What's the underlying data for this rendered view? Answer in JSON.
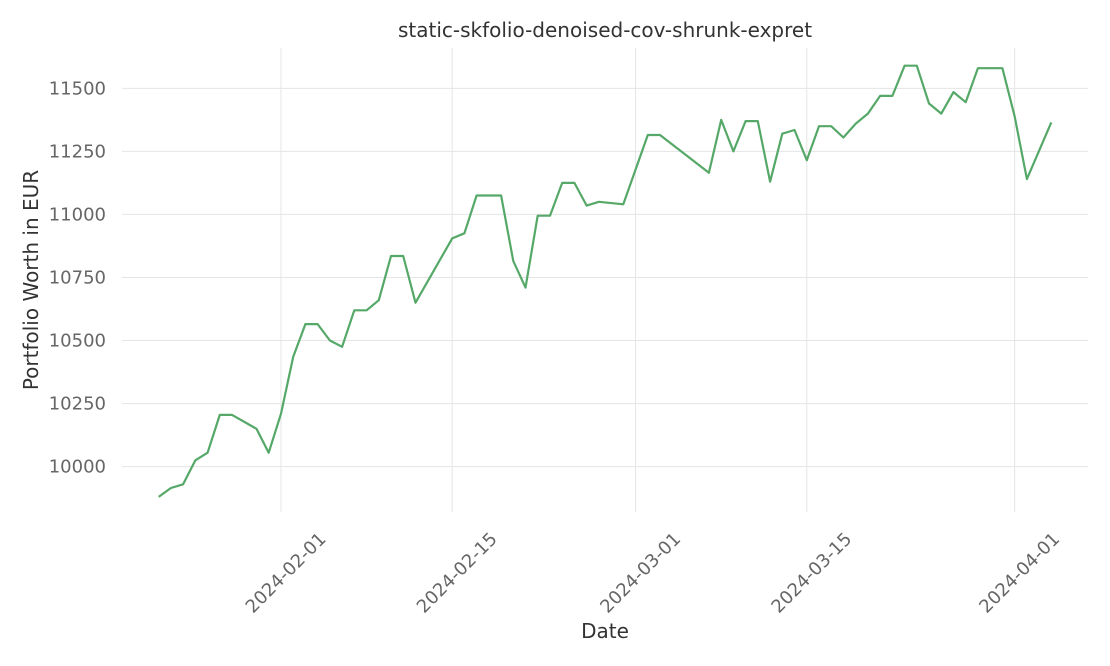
{
  "chart_data": {
    "type": "line",
    "title": "static-skfolio-denoised-cov-shrunk-expret",
    "xlabel": "Date",
    "ylabel": "Portfolio Worth in EUR",
    "xlim": [
      "2024-01-19",
      "2024-04-07"
    ],
    "ylim": [
      9820,
      11660
    ],
    "x_ticks": [
      "2024-02-01",
      "2024-02-15",
      "2024-03-01",
      "2024-03-15",
      "2024-04-01"
    ],
    "y_ticks": [
      10000,
      10250,
      10500,
      10750,
      11000,
      11250,
      11500
    ],
    "grid": true,
    "series": [
      {
        "color": "#55a868",
        "x": [
          "2024-01-22",
          "2024-01-23",
          "2024-01-24",
          "2024-01-25",
          "2024-01-26",
          "2024-01-27",
          "2024-01-28",
          "2024-01-30",
          "2024-01-31",
          "2024-02-01",
          "2024-02-02",
          "2024-02-03",
          "2024-02-04",
          "2024-02-05",
          "2024-02-06",
          "2024-02-07",
          "2024-02-08",
          "2024-02-09",
          "2024-02-10",
          "2024-02-11",
          "2024-02-12",
          "2024-02-15",
          "2024-02-16",
          "2024-02-17",
          "2024-02-18",
          "2024-02-19",
          "2024-02-20",
          "2024-02-21",
          "2024-02-22",
          "2024-02-23",
          "2024-02-24",
          "2024-02-25",
          "2024-02-26",
          "2024-02-27",
          "2024-02-29",
          "2024-03-02",
          "2024-03-03",
          "2024-03-07",
          "2024-03-08",
          "2024-03-09",
          "2024-03-10",
          "2024-03-11",
          "2024-03-12",
          "2024-03-13",
          "2024-03-14",
          "2024-03-15",
          "2024-03-16",
          "2024-03-17",
          "2024-03-18",
          "2024-03-19",
          "2024-03-20",
          "2024-03-21",
          "2024-03-22",
          "2024-03-23",
          "2024-03-24",
          "2024-03-25",
          "2024-03-26",
          "2024-03-27",
          "2024-03-28",
          "2024-03-29",
          "2024-03-30",
          "2024-03-31",
          "2024-04-01",
          "2024-04-02",
          "2024-04-04"
        ],
        "y": [
          9880,
          9915,
          9930,
          10025,
          10055,
          10205,
          10205,
          10150,
          10055,
          10210,
          10435,
          10565,
          10565,
          10500,
          10475,
          10620,
          10620,
          10660,
          10835,
          10835,
          10650,
          10905,
          10925,
          11075,
          11075,
          11075,
          10815,
          10710,
          10995,
          10995,
          11125,
          11125,
          11035,
          11050,
          11040,
          11315,
          11315,
          11165,
          11375,
          11250,
          11370,
          11370,
          11130,
          11320,
          11335,
          11215,
          11350,
          11350,
          11305,
          11360,
          11400,
          11470,
          11470,
          11590,
          11590,
          11440,
          11400,
          11485,
          11445,
          11580,
          11580,
          11580,
          11390,
          11140,
          11365
        ]
      }
    ]
  }
}
